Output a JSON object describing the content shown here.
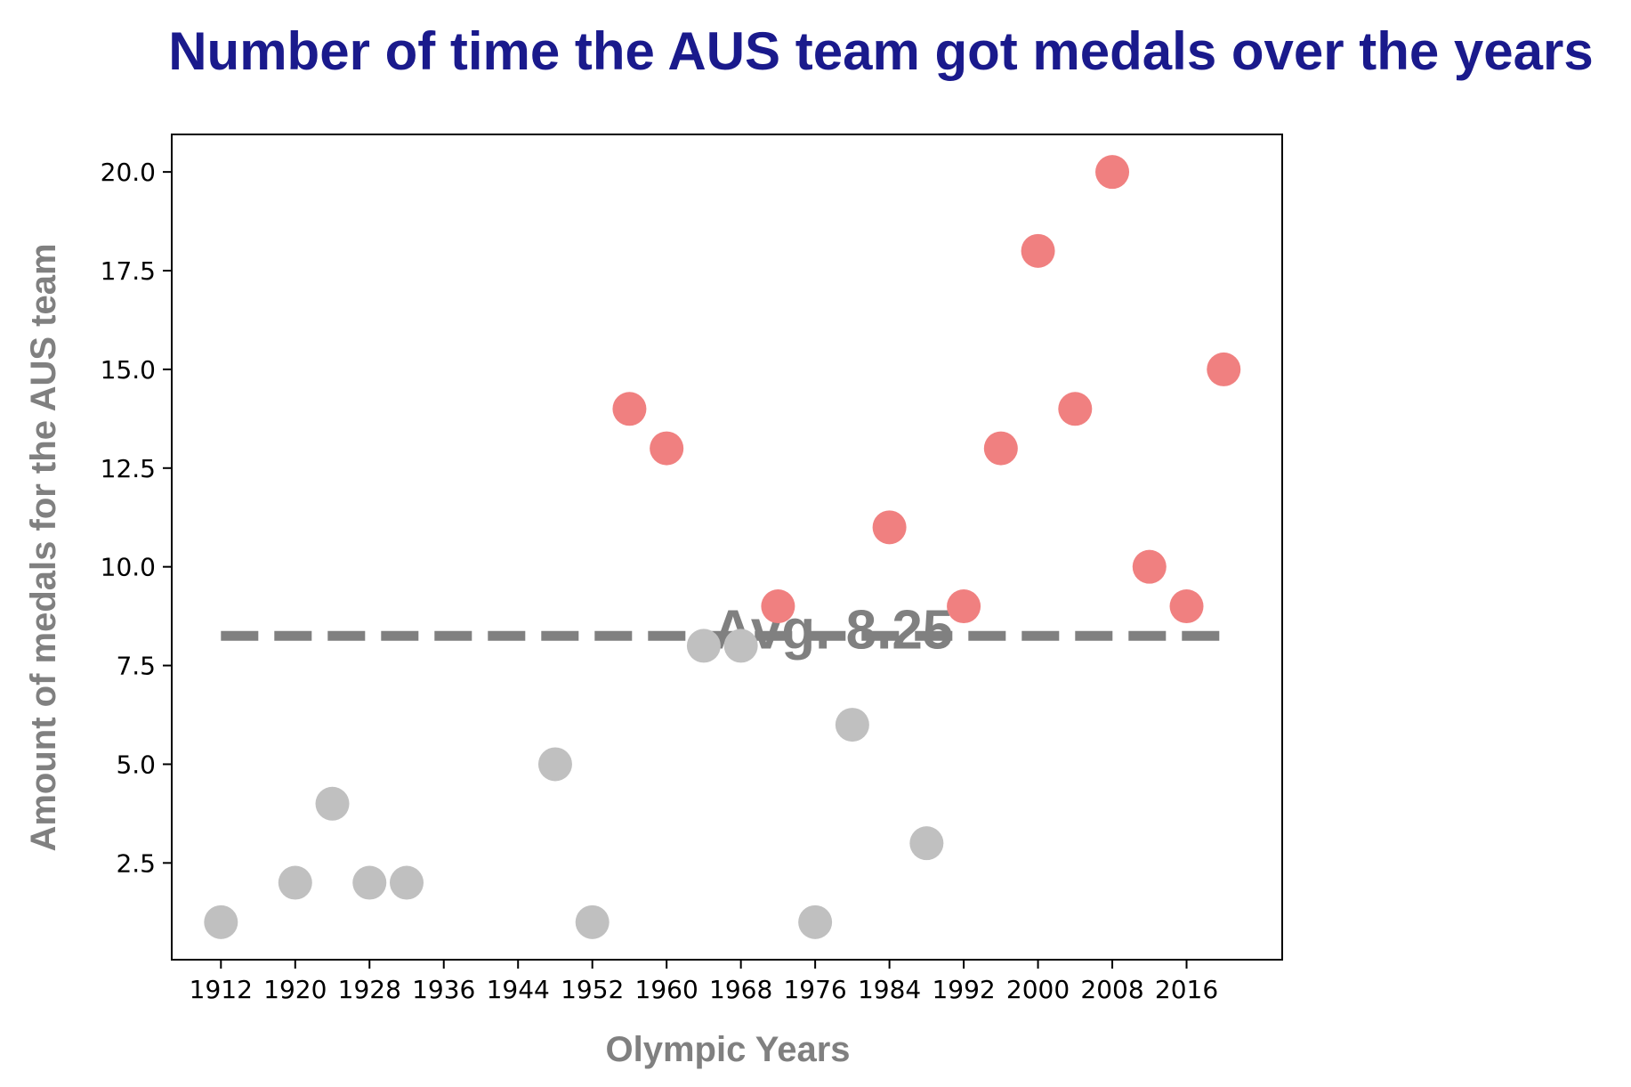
{
  "chart_data": {
    "type": "scatter",
    "title": "Number of time the AUS team got medals over the years",
    "xlabel": "Olympic Years",
    "ylabel": "Amount of medals for the AUS team",
    "x_ticks": [
      "1912",
      "1920",
      "1928",
      "1936",
      "1944",
      "1952",
      "1960",
      "1968",
      "1976",
      "1984",
      "1992",
      "2000",
      "2008",
      "2016"
    ],
    "y_ticks": [
      "2.5",
      "5.0",
      "7.5",
      "10.0",
      "12.5",
      "15.0",
      "17.5",
      "20.0"
    ],
    "xlim": [
      1906.7,
      2026.3
    ],
    "ylim": [
      0.05,
      20.95
    ],
    "points": [
      {
        "x": 1912,
        "y": 1,
        "above_avg": false
      },
      {
        "x": 1920,
        "y": 2,
        "above_avg": false
      },
      {
        "x": 1924,
        "y": 4,
        "above_avg": false
      },
      {
        "x": 1928,
        "y": 2,
        "above_avg": false
      },
      {
        "x": 1932,
        "y": 2,
        "above_avg": false
      },
      {
        "x": 1948,
        "y": 5,
        "above_avg": false
      },
      {
        "x": 1952,
        "y": 1,
        "above_avg": false
      },
      {
        "x": 1956,
        "y": 14,
        "above_avg": true
      },
      {
        "x": 1960,
        "y": 13,
        "above_avg": true
      },
      {
        "x": 1964,
        "y": 8,
        "above_avg": false
      },
      {
        "x": 1968,
        "y": 8,
        "above_avg": false
      },
      {
        "x": 1972,
        "y": 9,
        "above_avg": true
      },
      {
        "x": 1976,
        "y": 1,
        "above_avg": false
      },
      {
        "x": 1980,
        "y": 6,
        "above_avg": false
      },
      {
        "x": 1984,
        "y": 11,
        "above_avg": true
      },
      {
        "x": 1988,
        "y": 3,
        "above_avg": false
      },
      {
        "x": 1992,
        "y": 9,
        "above_avg": true
      },
      {
        "x": 1996,
        "y": 13,
        "above_avg": true
      },
      {
        "x": 2000,
        "y": 18,
        "above_avg": true
      },
      {
        "x": 2004,
        "y": 14,
        "above_avg": true
      },
      {
        "x": 2008,
        "y": 20,
        "above_avg": true
      },
      {
        "x": 2012,
        "y": 10,
        "above_avg": true
      },
      {
        "x": 2016,
        "y": 9,
        "above_avg": true
      },
      {
        "x": 2020,
        "y": 15,
        "above_avg": true
      }
    ],
    "average": {
      "value": 8.25,
      "label": "Avg. 8.25",
      "x_range": [
        1912,
        2020
      ]
    },
    "colors": {
      "above_avg": "#f08080",
      "below_avg": "#c0c0c0",
      "average_line": "#808080",
      "title": "#1a1a8c",
      "axis_title": "#808080"
    },
    "grid": false,
    "legend": "none"
  }
}
